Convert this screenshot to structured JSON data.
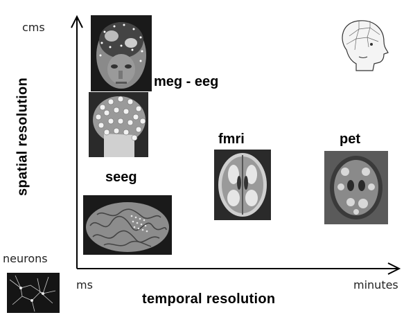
{
  "axes": {
    "y_title": "spatial resolution",
    "x_title": "temporal resolution",
    "y_top_label": "cms",
    "x_left_label": "ms",
    "x_right_label": "minutes"
  },
  "techniques": {
    "meg_eeg": "meg - eeg",
    "fmri": "fmri",
    "pet": "pet",
    "seeg": "seeg",
    "neurons": "neurons"
  },
  "images": {
    "meg_head": "head-with-sensors-image",
    "eeg_cap": "eeg-cap-image",
    "seeg_brain": "cortex-with-electrodes-image",
    "fmri_brain": "fmri-brain-slice-image",
    "pet_brain": "pet-brain-slice-image",
    "phrenology_head": "phrenology-head-image",
    "neurons_image": "neuron-network-image"
  }
}
